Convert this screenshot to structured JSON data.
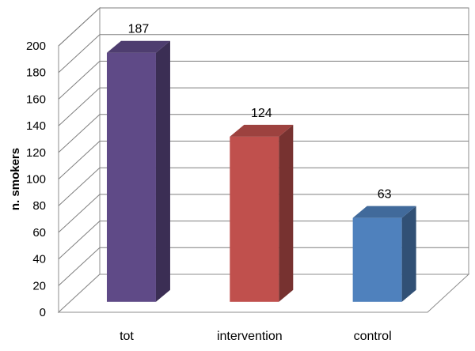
{
  "chart_data": {
    "type": "bar",
    "title": "",
    "xlabel": "",
    "ylabel": "n. smokers",
    "categories": [
      "tot",
      "intervention",
      "control"
    ],
    "values": [
      187,
      124,
      63
    ],
    "ylim": [
      0,
      200
    ],
    "yticks": [
      0,
      20,
      40,
      60,
      80,
      100,
      120,
      140,
      160,
      180,
      200
    ],
    "grid": true,
    "three_d": true,
    "colors": [
      "#5f4a87",
      "#c0504d",
      "#4f81bd"
    ],
    "data_labels": [
      "187",
      "124",
      "63"
    ]
  }
}
